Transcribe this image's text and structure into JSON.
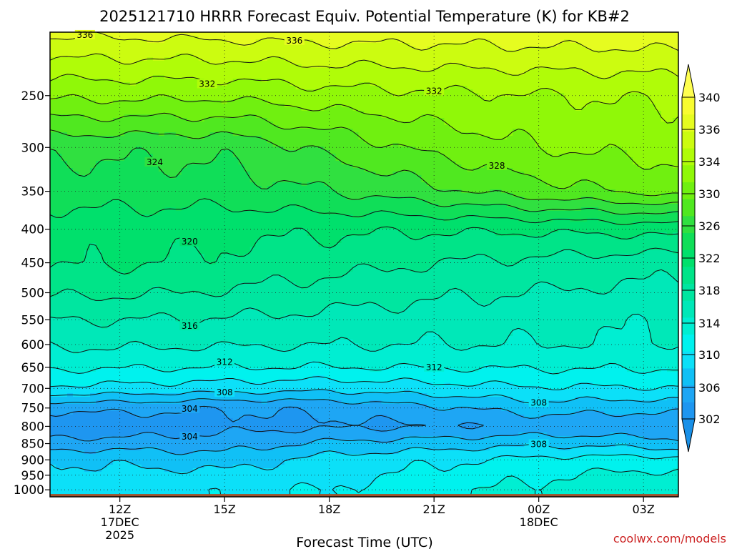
{
  "chart_data": {
    "type": "heatmap",
    "title": "2025121710 HRRR Forecast Equiv. Potential Temperature (K) for KB#2",
    "xlabel": "Forecast Time (UTC)",
    "ylabel": "",
    "credit": "coolwx.com/models",
    "y_scale": "log-pressure",
    "ylim": [
      1025,
      200
    ],
    "y_ticks": [
      250,
      300,
      350,
      400,
      450,
      500,
      550,
      600,
      650,
      700,
      750,
      800,
      850,
      900,
      950,
      1000
    ],
    "xlim_hours": [
      10.0,
      28.0
    ],
    "x_ticks": [
      {
        "hour": 12,
        "label": "12Z",
        "date1": "17DEC",
        "date2": "2025"
      },
      {
        "hour": 15,
        "label": "15Z",
        "date1": "",
        "date2": ""
      },
      {
        "hour": 18,
        "label": "18Z",
        "date1": "",
        "date2": ""
      },
      {
        "hour": 21,
        "label": "21Z",
        "date1": "",
        "date2": ""
      },
      {
        "hour": 24,
        "label": "00Z",
        "date1": "18DEC",
        "date2": ""
      },
      {
        "hour": 27,
        "label": "03Z",
        "date1": "",
        "date2": ""
      }
    ],
    "grid": true,
    "colorbar": {
      "levels": [
        302,
        304,
        306,
        308,
        310,
        312,
        314,
        316,
        318,
        320,
        322,
        324,
        326,
        328,
        330,
        332,
        334,
        336,
        338,
        340
      ],
      "tick_labels": [
        302,
        306,
        310,
        314,
        318,
        322,
        326,
        330,
        334,
        336,
        340
      ],
      "colors": [
        "#1e96f0",
        "#1ea6f4",
        "#10c0f6",
        "#0ce0f8",
        "#00f2ee",
        "#00eed2",
        "#00e8b8",
        "#00e6a0",
        "#00e488",
        "#00e06c",
        "#10de58",
        "#30e040",
        "#50e820",
        "#70f010",
        "#90f808",
        "#b0fc08",
        "#ccfc10",
        "#e6fc20",
        "#f8fc30",
        "#ffff40"
      ],
      "under_color": "#1890e8",
      "over_color": "#ffff50"
    },
    "x": [
      10.0,
      12.0,
      15.0,
      18.0,
      21.0,
      24.0,
      27.0,
      28.0
    ],
    "p": [
      1000,
      950,
      900,
      850,
      800,
      750,
      700,
      650,
      600,
      550,
      500,
      450,
      400,
      350,
      300,
      250,
      200
    ],
    "z": [
      [
        309.0,
        309.2,
        309.6,
        310.0,
        311.5,
        312.5,
        313.0,
        313.0
      ],
      [
        308.6,
        308.5,
        308.6,
        309.4,
        310.5,
        311.8,
        312.5,
        312.4
      ],
      [
        307.8,
        307.6,
        307.0,
        308.8,
        309.6,
        310.6,
        310.9,
        310.7
      ],
      [
        304.8,
        305.0,
        305.0,
        306.4,
        307.0,
        307.6,
        307.2,
        306.5
      ],
      [
        302.3,
        302.4,
        303.4,
        303.6,
        303.8,
        304.4,
        304.2,
        304.8
      ],
      [
        304.4,
        304.6,
        304.0,
        304.4,
        305.6,
        307.0,
        306.6,
        306.6
      ],
      [
        309.6,
        309.4,
        309.0,
        308.6,
        309.2,
        309.8,
        309.8,
        310.0
      ],
      [
        312.3,
        312.2,
        312.0,
        312.0,
        312.1,
        312.2,
        312.2,
        312.2
      ],
      [
        314.3,
        314.3,
        314.2,
        314.1,
        314.0,
        314.0,
        313.9,
        313.9
      ],
      [
        316.0,
        316.0,
        315.8,
        315.4,
        315.0,
        314.6,
        314.2,
        314.0
      ],
      [
        318.3,
        318.3,
        317.8,
        317.0,
        316.4,
        315.9,
        315.5,
        315.3
      ],
      [
        320.2,
        320.2,
        319.6,
        318.8,
        318.0,
        317.5,
        316.9,
        316.7
      ],
      [
        320.8,
        320.8,
        320.5,
        320.3,
        320.2,
        320.3,
        320.6,
        320.8
      ],
      [
        323.0,
        323.0,
        323.0,
        324.0,
        325.5,
        327.2,
        328.4,
        328.8
      ],
      [
        324.5,
        324.5,
        324.5,
        326.5,
        328.6,
        330.0,
        330.6,
        330.8
      ],
      [
        330.4,
        330.5,
        330.4,
        331.2,
        331.6,
        331.9,
        332.2,
        332.4
      ],
      [
        336.5,
        336.5,
        336.8,
        337.0,
        337.0,
        337.2,
        337.3,
        337.4
      ]
    ]
  }
}
